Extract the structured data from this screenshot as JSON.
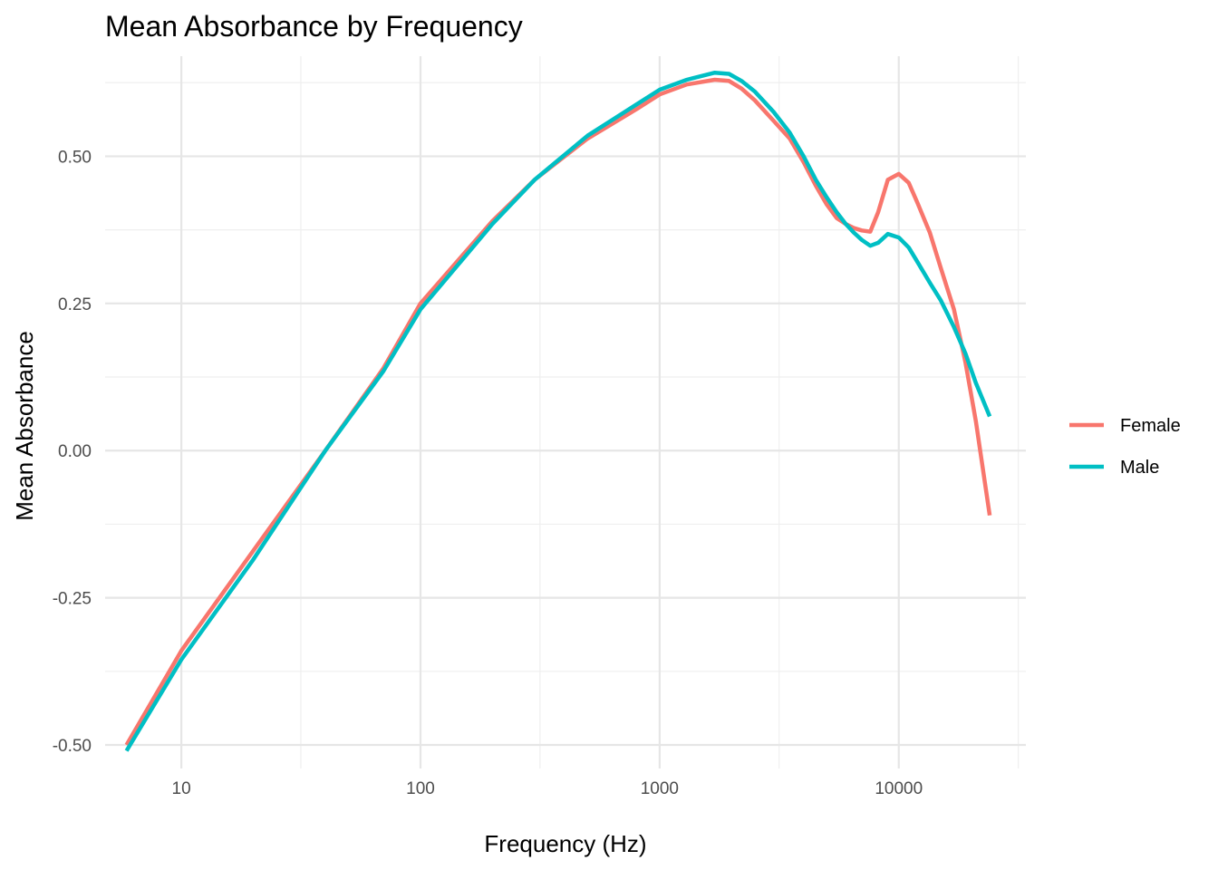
{
  "chart_data": {
    "type": "line",
    "title": "Mean Absorbance by Frequency",
    "xlabel": "Frequency (Hz)",
    "ylabel": "Mean Absorbance",
    "x_scale": "log10",
    "xlim": [
      4.8,
      34000
    ],
    "ylim": [
      -0.54,
      0.67
    ],
    "x_ticks": [
      {
        "value": 10,
        "label": "10"
      },
      {
        "value": 100,
        "label": "100"
      },
      {
        "value": 1000,
        "label": "1000"
      },
      {
        "value": 10000,
        "label": "10000"
      }
    ],
    "x_minor_ticks": [
      31.6,
      316,
      3160,
      31600
    ],
    "y_ticks": [
      {
        "value": -0.5,
        "label": "-0.50"
      },
      {
        "value": -0.25,
        "label": "-0.25"
      },
      {
        "value": 0,
        "label": "0.00"
      },
      {
        "value": 0.25,
        "label": "0.25"
      },
      {
        "value": 0.5,
        "label": "0.50"
      }
    ],
    "y_minor_ticks": [
      -0.375,
      -0.125,
      0.125,
      0.375,
      0.625
    ],
    "grid": true,
    "legend": {
      "position": "right"
    },
    "series": [
      {
        "name": "Female",
        "color": "#F8766D",
        "points": [
          [
            5.9,
            -0.5
          ],
          [
            10,
            -0.34
          ],
          [
            20,
            -0.17
          ],
          [
            40,
            0.0
          ],
          [
            70,
            0.14
          ],
          [
            100,
            0.25
          ],
          [
            200,
            0.39
          ],
          [
            300,
            0.46
          ],
          [
            500,
            0.53
          ],
          [
            800,
            0.58
          ],
          [
            1000,
            0.605
          ],
          [
            1300,
            0.622
          ],
          [
            1700,
            0.63
          ],
          [
            1950,
            0.628
          ],
          [
            2200,
            0.615
          ],
          [
            2500,
            0.595
          ],
          [
            3000,
            0.56
          ],
          [
            3500,
            0.53
          ],
          [
            4000,
            0.49
          ],
          [
            4500,
            0.45
          ],
          [
            5000,
            0.418
          ],
          [
            5500,
            0.395
          ],
          [
            6000,
            0.385
          ],
          [
            6500,
            0.378
          ],
          [
            7000,
            0.374
          ],
          [
            7600,
            0.372
          ],
          [
            8200,
            0.405
          ],
          [
            9000,
            0.46
          ],
          [
            10000,
            0.47
          ],
          [
            11000,
            0.455
          ],
          [
            12000,
            0.42
          ],
          [
            13500,
            0.37
          ],
          [
            15000,
            0.31
          ],
          [
            17000,
            0.24
          ],
          [
            19000,
            0.15
          ],
          [
            21000,
            0.05
          ],
          [
            24000,
            -0.11
          ]
        ]
      },
      {
        "name": "Male",
        "color": "#00BFC4",
        "points": [
          [
            5.9,
            -0.51
          ],
          [
            10,
            -0.355
          ],
          [
            20,
            -0.185
          ],
          [
            40,
            0.0
          ],
          [
            70,
            0.135
          ],
          [
            100,
            0.24
          ],
          [
            200,
            0.385
          ],
          [
            300,
            0.46
          ],
          [
            500,
            0.535
          ],
          [
            800,
            0.588
          ],
          [
            1000,
            0.613
          ],
          [
            1300,
            0.63
          ],
          [
            1700,
            0.642
          ],
          [
            1950,
            0.64
          ],
          [
            2200,
            0.628
          ],
          [
            2500,
            0.61
          ],
          [
            3000,
            0.575
          ],
          [
            3500,
            0.54
          ],
          [
            4000,
            0.5
          ],
          [
            4500,
            0.46
          ],
          [
            5000,
            0.43
          ],
          [
            5500,
            0.405
          ],
          [
            6000,
            0.385
          ],
          [
            6500,
            0.37
          ],
          [
            7000,
            0.358
          ],
          [
            7600,
            0.348
          ],
          [
            8200,
            0.353
          ],
          [
            9000,
            0.368
          ],
          [
            10000,
            0.362
          ],
          [
            11000,
            0.345
          ],
          [
            12000,
            0.32
          ],
          [
            13500,
            0.285
          ],
          [
            15000,
            0.255
          ],
          [
            17000,
            0.21
          ],
          [
            19000,
            0.165
          ],
          [
            21000,
            0.115
          ],
          [
            24000,
            0.058
          ]
        ]
      }
    ]
  }
}
